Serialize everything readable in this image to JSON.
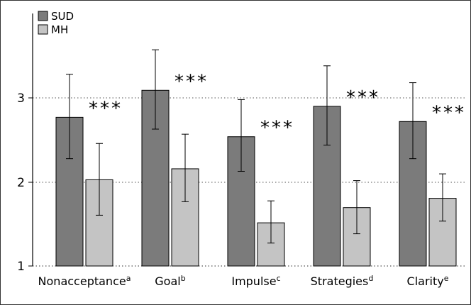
{
  "chart_data": {
    "type": "bar",
    "categories": [
      {
        "label": "Nonacceptance",
        "sup": "a"
      },
      {
        "label": "Goal",
        "sup": "b"
      },
      {
        "label": "Impulse",
        "sup": "c"
      },
      {
        "label": "Strategies",
        "sup": "d"
      },
      {
        "label": "Clarity",
        "sup": "e"
      }
    ],
    "series": [
      {
        "name": "SUD",
        "color": "#7b7b7b",
        "values": [
          2.77,
          3.09,
          2.54,
          2.9,
          2.72
        ],
        "error_low": [
          2.28,
          2.63,
          2.13,
          2.44,
          2.28
        ],
        "error_high": [
          3.28,
          3.57,
          2.98,
          3.38,
          3.18
        ]
      },
      {
        "name": "MH",
        "color": "#c4c4c4",
        "values": [
          2.03,
          2.16,
          1.52,
          1.7,
          1.81
        ],
        "error_low": [
          1.61,
          1.77,
          1.28,
          1.39,
          1.54
        ],
        "error_high": [
          2.46,
          2.57,
          1.78,
          2.02,
          2.1
        ]
      }
    ],
    "significance": [
      "***",
      "***",
      "***",
      "***",
      "***"
    ],
    "yticks": [
      1,
      2,
      3
    ],
    "ylim": [
      1,
      3.75
    ],
    "gridlines": "dotted",
    "legend_position": "top-left",
    "title": "",
    "xlabel": "",
    "ylabel": ""
  }
}
